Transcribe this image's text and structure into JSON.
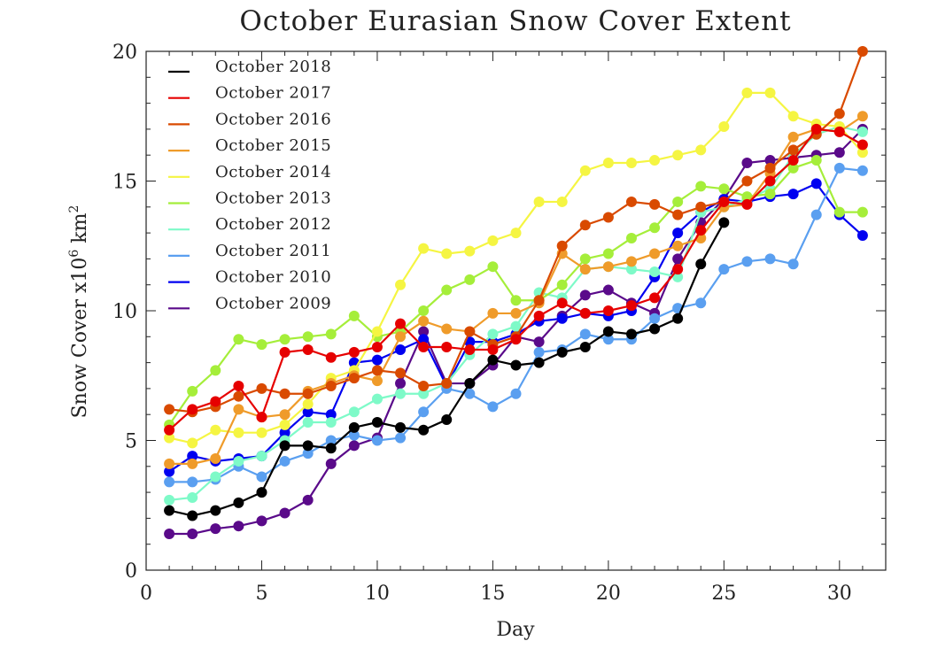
{
  "chart_data": {
    "type": "line",
    "title": "October Eurasian Snow Cover Extent",
    "xlabel": "Day",
    "ylabel_main": "Snow Cover x10",
    "ylabel_exp": "6",
    "ylabel_unit": " km",
    "ylabel_unit_exp": "2",
    "xlim": [
      0,
      32
    ],
    "ylim": [
      0,
      20
    ],
    "xticks": [
      0,
      5,
      10,
      15,
      20,
      25,
      30
    ],
    "yticks": [
      0,
      5,
      10,
      15,
      20
    ],
    "legend_position": "top-left",
    "x": [
      1,
      2,
      3,
      4,
      5,
      6,
      7,
      8,
      9,
      10,
      11,
      12,
      13,
      14,
      15,
      16,
      17,
      18,
      19,
      20,
      21,
      22,
      23,
      24,
      25,
      26,
      27,
      28,
      29,
      30,
      31
    ],
    "series": [
      {
        "name": "October 2018",
        "color": "#000000",
        "values": [
          2.3,
          2.1,
          2.3,
          2.6,
          3.0,
          4.8,
          4.8,
          4.7,
          5.5,
          5.7,
          5.5,
          5.4,
          5.8,
          7.2,
          8.1,
          7.9,
          8.0,
          8.4,
          8.6,
          9.2,
          9.1,
          9.3,
          9.7,
          11.8,
          13.4,
          null,
          null,
          null,
          null,
          null,
          null
        ]
      },
      {
        "name": "October 2017",
        "color": "#e60000",
        "values": [
          5.4,
          6.2,
          6.5,
          7.1,
          5.9,
          8.4,
          8.5,
          8.2,
          8.4,
          8.6,
          9.5,
          8.6,
          8.6,
          8.5,
          8.5,
          8.9,
          9.8,
          10.3,
          9.9,
          10.0,
          10.2,
          10.5,
          11.6,
          13.1,
          14.2,
          14.1,
          15.0,
          15.8,
          17.0,
          16.9,
          16.4
        ]
      },
      {
        "name": "October 2016",
        "color": "#d94a00",
        "values": [
          6.2,
          6.1,
          6.3,
          6.7,
          7.0,
          6.8,
          6.8,
          7.1,
          7.4,
          7.7,
          7.6,
          7.1,
          7.2,
          9.2,
          8.7,
          9.0,
          10.4,
          12.5,
          13.3,
          13.6,
          14.2,
          14.1,
          13.7,
          14.0,
          14.2,
          15.0,
          15.5,
          16.2,
          16.8,
          17.6,
          20.0
        ]
      },
      {
        "name": "October 2015",
        "color": "#ef9b2a",
        "values": [
          4.1,
          4.1,
          4.3,
          6.2,
          5.9,
          6.0,
          6.9,
          7.2,
          7.5,
          7.3,
          9.0,
          9.6,
          9.3,
          9.2,
          9.9,
          9.9,
          10.3,
          12.2,
          11.6,
          11.7,
          11.9,
          12.2,
          12.5,
          12.8,
          14.0,
          14.1,
          15.3,
          16.7,
          17.0,
          16.9,
          17.5
        ]
      },
      {
        "name": "October 2014",
        "color": "#f5f542",
        "values": [
          5.1,
          4.9,
          5.4,
          5.3,
          5.3,
          5.6,
          6.4,
          7.4,
          7.7,
          9.2,
          11.0,
          12.4,
          12.2,
          12.3,
          12.7,
          13.0,
          14.2,
          14.2,
          15.4,
          15.7,
          15.7,
          15.8,
          16.0,
          16.2,
          17.1,
          18.4,
          18.4,
          17.5,
          17.2,
          17.1,
          16.1
        ]
      },
      {
        "name": "October 2013",
        "color": "#a5ee3a",
        "values": [
          5.6,
          6.9,
          7.7,
          8.9,
          8.7,
          8.9,
          9.0,
          9.1,
          9.8,
          9.0,
          9.2,
          10.0,
          10.8,
          11.2,
          11.7,
          10.4,
          10.4,
          11.0,
          12.0,
          12.2,
          12.8,
          13.2,
          14.2,
          14.8,
          14.7,
          14.4,
          14.5,
          15.5,
          15.8,
          13.8,
          13.8
        ]
      },
      {
        "name": "October 2012",
        "color": "#7efac8",
        "values": [
          2.7,
          2.8,
          3.6,
          4.2,
          4.4,
          5.0,
          5.7,
          5.7,
          6.1,
          6.6,
          6.8,
          6.8,
          7.2,
          8.3,
          9.1,
          9.4,
          10.7,
          10.5,
          11.6,
          11.7,
          11.6,
          11.5,
          11.3,
          13.8,
          14.0,
          14.3,
          14.7,
          16.0,
          16.8,
          17.1,
          16.9
        ]
      },
      {
        "name": "October 2011",
        "color": "#5a9ff0",
        "values": [
          3.4,
          3.4,
          3.5,
          4.0,
          3.6,
          4.2,
          4.5,
          5.0,
          5.2,
          5.0,
          5.1,
          6.1,
          7.0,
          6.8,
          6.3,
          6.8,
          8.4,
          8.5,
          9.1,
          8.9,
          8.9,
          9.7,
          10.1,
          10.3,
          11.6,
          11.9,
          12.0,
          11.8,
          13.7,
          15.5,
          15.4
        ]
      },
      {
        "name": "October 2010",
        "color": "#0000f0",
        "values": [
          3.8,
          4.4,
          4.2,
          4.3,
          4.4,
          5.3,
          6.1,
          6.0,
          8.0,
          8.1,
          8.5,
          8.9,
          7.1,
          8.8,
          8.8,
          9.1,
          9.6,
          9.7,
          9.9,
          9.8,
          10.0,
          11.3,
          13.0,
          13.8,
          14.3,
          14.2,
          14.4,
          14.5,
          14.9,
          13.7,
          12.9
        ]
      },
      {
        "name": "October 2009",
        "color": "#5a0a8a",
        "values": [
          1.4,
          1.4,
          1.6,
          1.7,
          1.9,
          2.2,
          2.7,
          4.1,
          4.8,
          5.1,
          7.2,
          9.2,
          7.2,
          7.2,
          7.9,
          9.0,
          8.8,
          9.8,
          10.6,
          10.8,
          10.3,
          9.9,
          12.0,
          13.4,
          14.3,
          15.7,
          15.8,
          15.9,
          16.0,
          16.1,
          17.0
        ]
      }
    ]
  }
}
